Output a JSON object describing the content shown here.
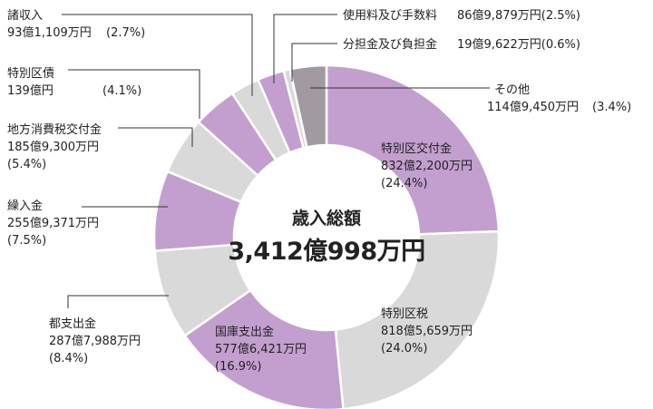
{
  "chart_data": {
    "type": "pie",
    "donut": true,
    "center": {
      "title": "歳入総額",
      "total": "3,412億998万円"
    },
    "start": "top",
    "direction": "clockwise",
    "colors": {
      "purple": "#c39fcf",
      "gray": "#d9d9d9",
      "dark": "#a19ba1"
    },
    "slices": [
      {
        "name": "特別区交付金",
        "amount": "832億2,200万円",
        "percent": "(24.4%)",
        "value": 24.4,
        "color": "#c39fcf"
      },
      {
        "name": "特別区税",
        "amount": "818億5,659万円",
        "percent": "(24.0%)",
        "value": 24.0,
        "color": "#d9d9d9"
      },
      {
        "name": "国庫支出金",
        "amount": "577億6,421万円",
        "percent": "(16.9%)",
        "value": 16.9,
        "color": "#c39fcf"
      },
      {
        "name": "都支出金",
        "amount": "287億7,988万円",
        "percent": "(8.4%)",
        "value": 8.4,
        "color": "#d9d9d9"
      },
      {
        "name": "繰入金",
        "amount": "255億9,371万円",
        "percent": "(7.5%)",
        "value": 7.5,
        "color": "#c39fcf"
      },
      {
        "name": "地方消費税交付金",
        "amount": "185億9,300万円",
        "percent": "(5.4%)",
        "value": 5.4,
        "color": "#d9d9d9"
      },
      {
        "name": "特別区債",
        "amount": "139億円",
        "percent": "(4.1%)",
        "value": 4.1,
        "color": "#c39fcf"
      },
      {
        "name": "諸収入",
        "amount": "93億1,109万円",
        "percent": "(2.7%)",
        "value": 2.7,
        "color": "#d9d9d9"
      },
      {
        "name": "使用料及び手数料",
        "amount": "86億9,879万円",
        "percent": "(2.5%)",
        "value": 2.5,
        "color": "#c39fcf"
      },
      {
        "name": "分担金及び負担金",
        "amount": "19億9,622万円",
        "percent": "(0.6%)",
        "value": 0.6,
        "color": "#d9d9d9"
      },
      {
        "name": "その他",
        "amount": "114億9,450万円",
        "percent": "(3.4%)",
        "value": 3.4,
        "color": "#a19ba1"
      }
    ]
  }
}
